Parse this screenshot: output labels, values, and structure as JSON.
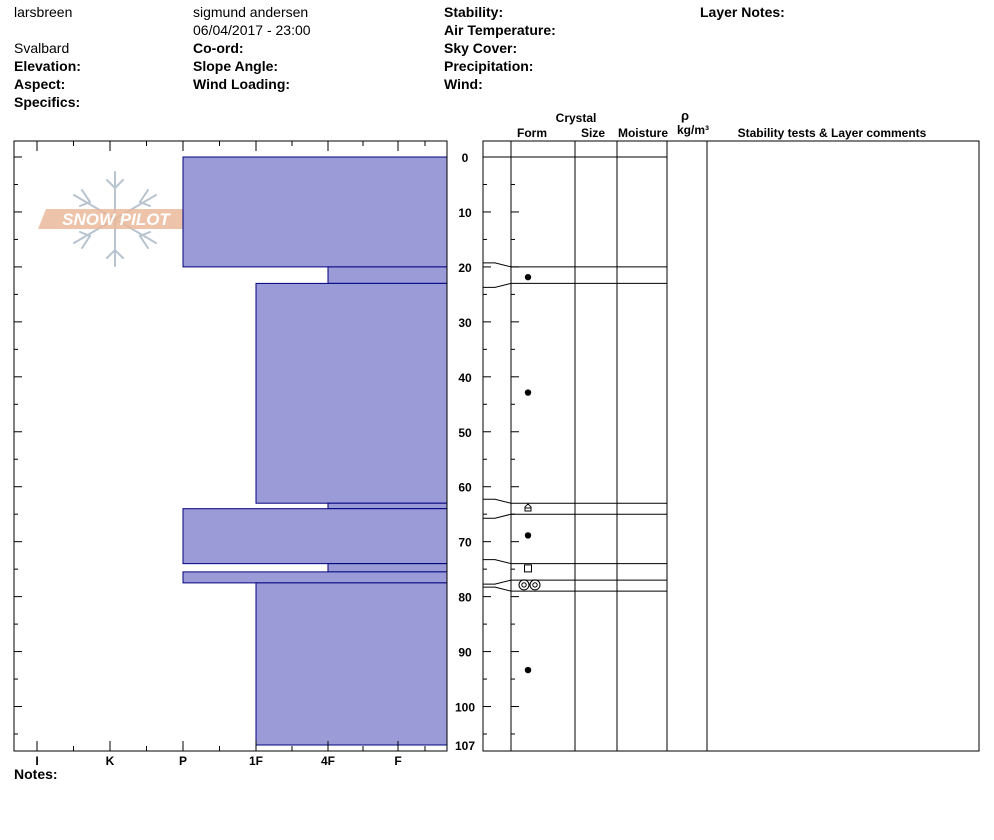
{
  "header": {
    "site": "larsbreen",
    "observer": "sigmund andersen",
    "datetime": "06/04/2017 - 23:00",
    "region": "Svalbard",
    "labels": {
      "stability": "Stability:",
      "layer_notes": "Layer Notes:",
      "air_temperature": "Air Temperature:",
      "coord": "Co-ord:",
      "sky_cover": "Sky Cover:",
      "elevation": "Elevation:",
      "slope_angle": "Slope Angle:",
      "precipitation": "Precipitation:",
      "aspect": "Aspect:",
      "wind_loading": "Wind Loading:",
      "wind": "Wind:",
      "specifics": "Specifics:",
      "notes": "Notes:"
    }
  },
  "logo": {
    "text": "SNOW PILOT"
  },
  "columns": {
    "crystal": "Crystal",
    "form": "Form",
    "size": "Size",
    "moisture": "Moisture",
    "rho": "ρ",
    "density_unit": "kg/m³",
    "comments": "Stability tests & Layer comments"
  },
  "colors": {
    "hardness_fill": "#9b9bd7",
    "hardness_stroke": "#00007f",
    "line": "#000000"
  },
  "chart_data": {
    "type": "bar",
    "orientation": "horizontal",
    "depth_axis": {
      "ticks": [
        0,
        10,
        20,
        30,
        40,
        50,
        60,
        70,
        80,
        90,
        100,
        107
      ],
      "range": [
        0,
        107
      ],
      "reversed": true
    },
    "hardness_axis": {
      "categories": [
        "I",
        "K",
        "P",
        "1F",
        "4F",
        "F"
      ],
      "direction": "right-to-left"
    },
    "layers": [
      {
        "top": 0,
        "bottom": 20,
        "hardness": "P"
      },
      {
        "top": 20,
        "bottom": 23,
        "hardness": "4F"
      },
      {
        "top": 23,
        "bottom": 63,
        "hardness": "1F"
      },
      {
        "top": 63,
        "bottom": 64,
        "hardness": "4F"
      },
      {
        "top": 64,
        "bottom": 74,
        "hardness": "P"
      },
      {
        "top": 74,
        "bottom": 75.5,
        "hardness": "4F"
      },
      {
        "top": 75.5,
        "bottom": 77.5,
        "hardness": "P"
      },
      {
        "top": 77.5,
        "bottom": 107,
        "hardness": "1F"
      }
    ],
    "layer_boundaries": [
      0,
      20,
      23,
      63,
      65,
      74,
      77,
      79
    ],
    "grain_forms": [
      {
        "depth": 21.5,
        "symbol": "round-dot-icon"
      },
      {
        "depth": 42.5,
        "symbol": "round-dot-icon"
      },
      {
        "depth": 63.5,
        "symbol": "depth-hoar-icon"
      },
      {
        "depth": 68.5,
        "symbol": "round-dot-icon"
      },
      {
        "depth": 74.5,
        "symbol": "faceted-square-icon"
      },
      {
        "depth": 77.5,
        "symbol": "melt-freeze-icon"
      },
      {
        "depth": 93,
        "symbol": "round-dot-icon"
      }
    ]
  }
}
